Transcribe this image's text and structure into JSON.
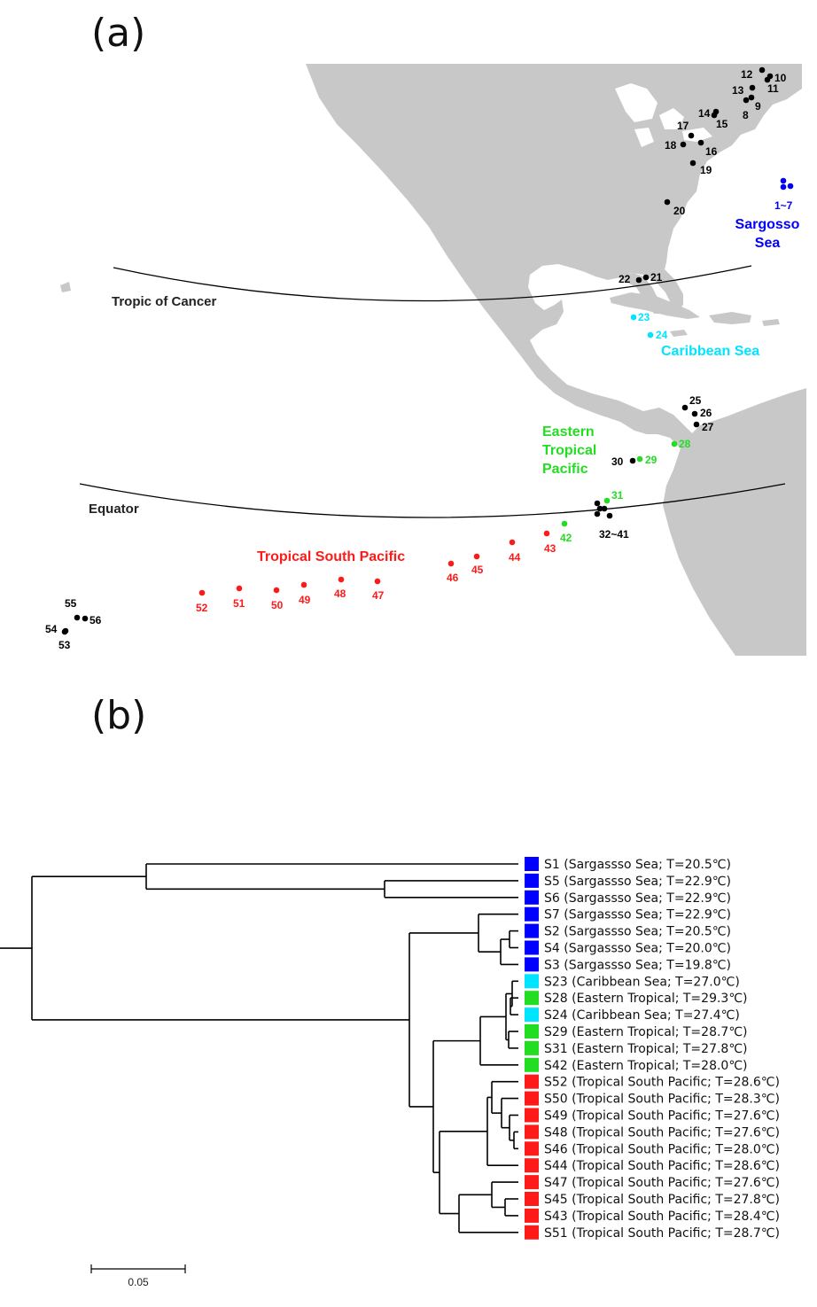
{
  "panel_a": {
    "label": "(a)"
  },
  "panel_b": {
    "label": "(b)"
  },
  "colors": {
    "land": "#c8c8c8",
    "black": "#000000",
    "sargasso": "#0000ff",
    "caribbean": "#00e5ff",
    "eastern_tropical": "#22dd22",
    "tropical_south_pacific": "#ff1a1a"
  },
  "map": {
    "reference_lines": [
      {
        "id": "tropic",
        "label": "Tropic of Cancer"
      },
      {
        "id": "equator",
        "label": "Equator"
      }
    ],
    "regions": [
      {
        "id": "sargasso",
        "lines": [
          "Sargosso",
          "Sea"
        ],
        "color": "#0000ff"
      },
      {
        "id": "caribbean",
        "lines": [
          "Caribbean Sea"
        ],
        "color": "#00e5ff"
      },
      {
        "id": "eastern_tropical",
        "lines": [
          "Eastern",
          "Tropical",
          "Pacific"
        ],
        "color": "#22dd22"
      },
      {
        "id": "tsp",
        "lines": [
          "Tropical  South Pacific"
        ],
        "color": "#ff1a1a"
      }
    ],
    "sites": [
      {
        "label": "1~7",
        "group": "sargasso"
      },
      {
        "label": "8",
        "group": "black"
      },
      {
        "label": "9",
        "group": "black"
      },
      {
        "label": "10",
        "group": "black"
      },
      {
        "label": "11",
        "group": "black"
      },
      {
        "label": "12",
        "group": "black"
      },
      {
        "label": "13",
        "group": "black"
      },
      {
        "label": "14",
        "group": "black"
      },
      {
        "label": "15",
        "group": "black"
      },
      {
        "label": "16",
        "group": "black"
      },
      {
        "label": "17",
        "group": "black"
      },
      {
        "label": "18",
        "group": "black"
      },
      {
        "label": "19",
        "group": "black"
      },
      {
        "label": "20",
        "group": "black"
      },
      {
        "label": "21",
        "group": "black"
      },
      {
        "label": "22",
        "group": "black"
      },
      {
        "label": "23",
        "group": "caribbean"
      },
      {
        "label": "24",
        "group": "caribbean"
      },
      {
        "label": "25",
        "group": "black"
      },
      {
        "label": "26",
        "group": "black"
      },
      {
        "label": "27",
        "group": "black"
      },
      {
        "label": "28",
        "group": "eastern_tropical"
      },
      {
        "label": "29",
        "group": "eastern_tropical"
      },
      {
        "label": "30",
        "group": "black"
      },
      {
        "label": "31",
        "group": "eastern_tropical"
      },
      {
        "label": "32~41",
        "group": "black"
      },
      {
        "label": "42",
        "group": "eastern_tropical"
      },
      {
        "label": "43",
        "group": "tsp"
      },
      {
        "label": "44",
        "group": "tsp"
      },
      {
        "label": "45",
        "group": "tsp"
      },
      {
        "label": "46",
        "group": "tsp"
      },
      {
        "label": "47",
        "group": "tsp"
      },
      {
        "label": "48",
        "group": "tsp"
      },
      {
        "label": "49",
        "group": "tsp"
      },
      {
        "label": "50",
        "group": "tsp"
      },
      {
        "label": "51",
        "group": "tsp"
      },
      {
        "label": "52",
        "group": "tsp"
      },
      {
        "label": "53",
        "group": "black"
      },
      {
        "label": "54",
        "group": "black"
      },
      {
        "label": "55",
        "group": "black"
      },
      {
        "label": "56",
        "group": "black"
      }
    ]
  },
  "tree": {
    "scale_bar_label": "0.05",
    "leaves": [
      {
        "id": "S1",
        "text": "S1 (Sargassso Sea; T=20.5℃)",
        "color": "#0000ff"
      },
      {
        "id": "S5",
        "text": "S5 (Sargassso Sea; T=22.9℃)",
        "color": "#0000ff"
      },
      {
        "id": "S6",
        "text": "S6 (Sargassso Sea; T=22.9℃)",
        "color": "#0000ff"
      },
      {
        "id": "S7",
        "text": "S7 (Sargassso Sea; T=22.9℃)",
        "color": "#0000ff"
      },
      {
        "id": "S2",
        "text": "S2 (Sargassso Sea; T=20.5℃)",
        "color": "#0000ff"
      },
      {
        "id": "S4",
        "text": "S4 (Sargassso Sea; T=20.0℃)",
        "color": "#0000ff"
      },
      {
        "id": "S3",
        "text": "S3 (Sargassso Sea; T=19.8℃)",
        "color": "#0000ff"
      },
      {
        "id": "S23",
        "text": "S23 (Caribbean Sea; T=27.0℃)",
        "color": "#00e5ff"
      },
      {
        "id": "S28",
        "text": "S28 (Eastern Tropical; T=29.3℃)",
        "color": "#22dd22"
      },
      {
        "id": "S24",
        "text": "S24 (Caribbean Sea; T=27.4℃)",
        "color": "#00e5ff"
      },
      {
        "id": "S29",
        "text": "S29 (Eastern Tropical; T=28.7℃)",
        "color": "#22dd22"
      },
      {
        "id": "S31",
        "text": "S31 (Eastern Tropical; T=27.8℃)",
        "color": "#22dd22"
      },
      {
        "id": "S42",
        "text": "S42 (Eastern Tropical; T=28.0℃)",
        "color": "#22dd22"
      },
      {
        "id": "S52",
        "text": "S52 (Tropical South Pacific; T=28.6℃)",
        "color": "#ff1a1a"
      },
      {
        "id": "S50",
        "text": "S50 (Tropical South Pacific; T=28.3℃)",
        "color": "#ff1a1a"
      },
      {
        "id": "S49",
        "text": "S49 (Tropical South Pacific; T=27.6℃)",
        "color": "#ff1a1a"
      },
      {
        "id": "S48",
        "text": "S48 (Tropical South Pacific; T=27.6℃)",
        "color": "#ff1a1a"
      },
      {
        "id": "S46",
        "text": "S46 (Tropical South Pacific; T=28.0℃)",
        "color": "#ff1a1a"
      },
      {
        "id": "S44",
        "text": "S44 (Tropical South Pacific; T=28.6℃)",
        "color": "#ff1a1a"
      },
      {
        "id": "S47",
        "text": "S47 (Tropical South Pacific; T=27.6℃)",
        "color": "#ff1a1a"
      },
      {
        "id": "S45",
        "text": "S45 (Tropical South Pacific; T=27.8℃)",
        "color": "#ff1a1a"
      },
      {
        "id": "S43",
        "text": "S43 (Tropical South Pacific; T=28.4℃)",
        "color": "#ff1a1a"
      },
      {
        "id": "S51",
        "text": "S51 (Tropical South Pacific; T=28.7℃)",
        "color": "#ff1a1a"
      }
    ]
  }
}
